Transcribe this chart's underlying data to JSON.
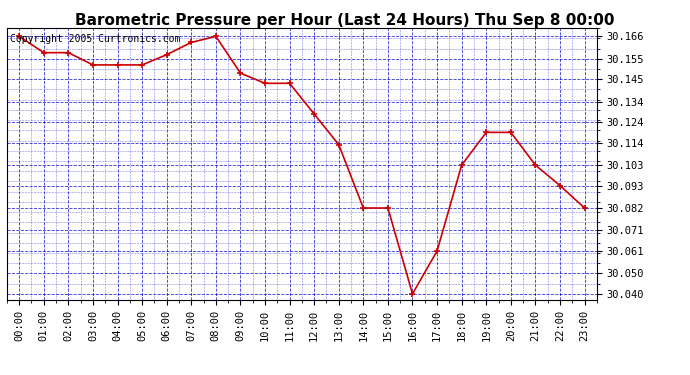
{
  "title": "Barometric Pressure per Hour (Last 24 Hours) Thu Sep 8 00:00",
  "copyright": "Copyright 2005 Curtronics.com",
  "hours": [
    0,
    1,
    2,
    3,
    4,
    5,
    6,
    7,
    8,
    9,
    10,
    11,
    12,
    13,
    14,
    15,
    16,
    17,
    18,
    19,
    20,
    21,
    22,
    23
  ],
  "x_labels": [
    "00:00",
    "01:00",
    "02:00",
    "03:00",
    "04:00",
    "05:00",
    "06:00",
    "07:00",
    "08:00",
    "09:00",
    "10:00",
    "11:00",
    "12:00",
    "13:00",
    "14:00",
    "15:00",
    "16:00",
    "17:00",
    "18:00",
    "19:00",
    "20:00",
    "21:00",
    "22:00",
    "23:00"
  ],
  "values": [
    30.166,
    30.158,
    30.158,
    30.152,
    30.152,
    30.152,
    30.157,
    30.163,
    30.166,
    30.148,
    30.143,
    30.143,
    30.128,
    30.113,
    30.082,
    30.082,
    30.04,
    30.061,
    30.103,
    30.119,
    30.119,
    30.103,
    30.093,
    30.082
  ],
  "line_color": "#cc0000",
  "marker_color": "#cc0000",
  "background_color": "#ffffff",
  "plot_bg_color": "#ffffff",
  "grid_color": "#0000cc",
  "ylim_min": 30.037,
  "ylim_max": 30.17,
  "yticks": [
    30.04,
    30.05,
    30.061,
    30.071,
    30.082,
    30.093,
    30.103,
    30.114,
    30.124,
    30.134,
    30.145,
    30.155,
    30.166
  ],
  "title_fontsize": 11,
  "tick_fontsize": 7.5,
  "copyright_fontsize": 7
}
